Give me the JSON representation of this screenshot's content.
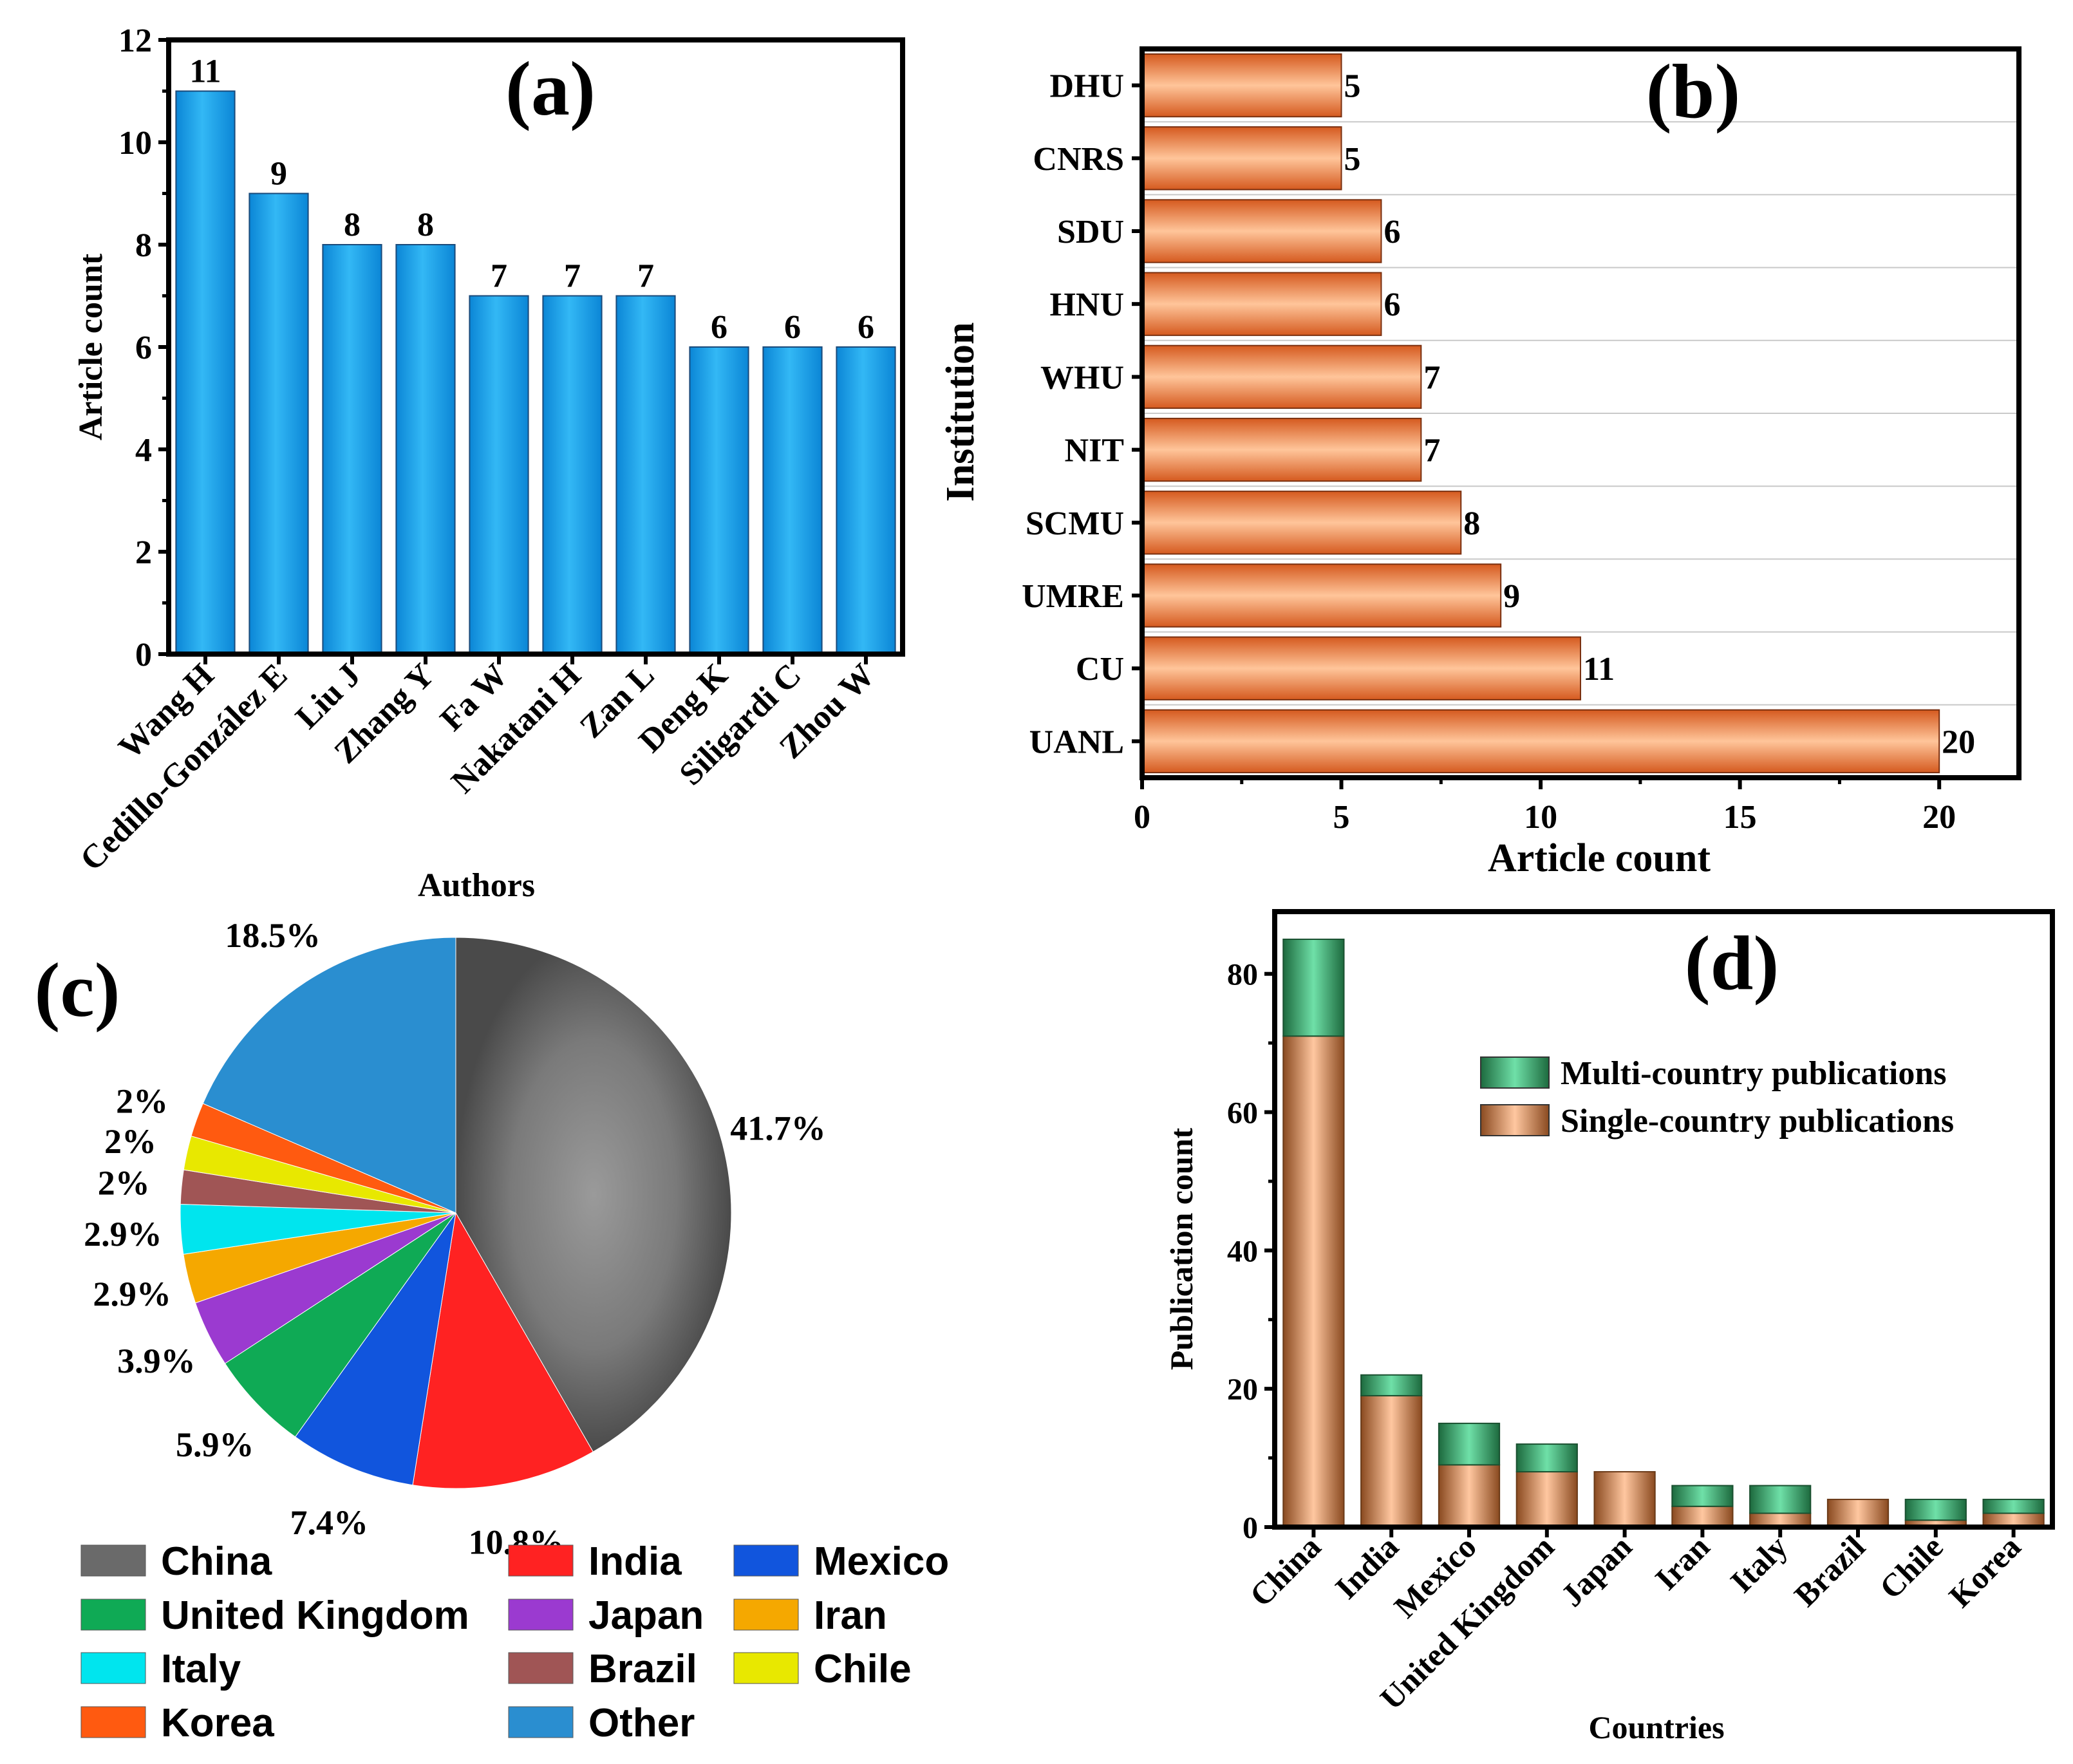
{
  "chart_data": [
    {
      "type": "bar",
      "panel_label": "(a)",
      "categories": [
        "Wang H",
        "Cedillo-González E",
        "Liu J",
        "Zhang Y",
        "Fa W",
        "Nakatani H",
        "Zan L",
        "Deng K",
        "Siligardi C",
        "Zhou W"
      ],
      "values": [
        11,
        9,
        8,
        8,
        7,
        7,
        7,
        6,
        6,
        6
      ],
      "value_labels": [
        "11",
        "9",
        "8",
        "8",
        "7",
        "7",
        "7",
        "6",
        "6",
        "6"
      ],
      "xlabel": "Authors",
      "ylabel": "Article count",
      "ylim": [
        0,
        12
      ],
      "yticks": [
        0,
        2,
        4,
        6,
        8,
        10,
        12
      ],
      "ytick_labels": [
        "0",
        "2",
        "4",
        "6",
        "8",
        "10",
        "12"
      ],
      "color": "#1fa8ee"
    },
    {
      "type": "bar",
      "orientation": "horizontal",
      "panel_label": "(b)",
      "categories": [
        "DHU",
        "CNRS",
        "SDU",
        "HNU",
        "WHU",
        "NIT",
        "SCMU",
        "UMRE",
        "CU",
        "UANL"
      ],
      "values": [
        5,
        5,
        6,
        6,
        7,
        7,
        8,
        9,
        11,
        20
      ],
      "value_labels": [
        "5",
        "5",
        "6",
        "6",
        "7",
        "7",
        "8",
        "9",
        "11",
        "20"
      ],
      "xlabel": "Article count",
      "ylabel": "Institution",
      "xlim": [
        0,
        22
      ],
      "xticks": [
        0,
        5,
        10,
        15,
        20
      ],
      "xtick_labels": [
        "0",
        "5",
        "10",
        "15",
        "20"
      ],
      "color": "#ef8a4e"
    },
    {
      "type": "pie",
      "panel_label": "(c)",
      "categories": [
        "China",
        "India",
        "Mexico",
        "United Kingdom",
        "Japan",
        "Iran",
        "Italy",
        "Brazil",
        "Chile",
        "Korea",
        "Other"
      ],
      "values": [
        41.7,
        10.8,
        7.4,
        5.9,
        3.9,
        2.9,
        2.9,
        2,
        2,
        2,
        18.5
      ],
      "percent_labels": [
        "41.7%",
        "10.8%",
        "7.4%",
        "5.9%",
        "3.9%",
        "2.9%",
        "2.9%",
        "2%",
        "2%",
        "2%",
        "18.5%"
      ],
      "colors": [
        "#6a6a6a",
        "#ff2222",
        "#1155dd",
        "#0faa55",
        "#9b3ad0",
        "#f5a800",
        "#00e5ee",
        "#a05555",
        "#e8e800",
        "#ff5a10",
        "#2a8ed0"
      ],
      "legend": [
        {
          "label": "China",
          "color": "#6a6a6a"
        },
        {
          "label": "India",
          "color": "#ff2222"
        },
        {
          "label": "Mexico",
          "color": "#1155dd"
        },
        {
          "label": "United Kingdom",
          "color": "#0faa55"
        },
        {
          "label": "Japan",
          "color": "#9b3ad0"
        },
        {
          "label": "Iran",
          "color": "#f5a800"
        },
        {
          "label": "Italy",
          "color": "#00e5ee"
        },
        {
          "label": "Brazil",
          "color": "#a05555"
        },
        {
          "label": "Chile",
          "color": "#e8e800"
        },
        {
          "label": "Korea",
          "color": "#ff5a10"
        },
        {
          "label": "Other",
          "color": "#2a8ed0"
        }
      ],
      "legend_position": "bottom"
    },
    {
      "type": "bar",
      "stacked": true,
      "panel_label": "(d)",
      "categories": [
        "China",
        "India",
        "Mexico",
        "United Kingdom",
        "Japan",
        "Iran",
        "Italy",
        "Brazil",
        "Chile",
        "Korea"
      ],
      "series": [
        {
          "name": "Single-country publications",
          "values": [
            71,
            19,
            9,
            8,
            8,
            3,
            2,
            4,
            1,
            2
          ],
          "color": "#f2b080"
        },
        {
          "name": "Multi-country publications",
          "values": [
            14,
            3,
            6,
            4,
            0,
            3,
            4,
            0,
            3,
            2
          ],
          "color": "#3fbf7f"
        }
      ],
      "legend_order": [
        "Multi-country publications",
        "Single-country publications"
      ],
      "legend_position": "top-right",
      "xlabel": "Countries",
      "ylabel": "Publication count",
      "ylim": [
        0,
        89
      ],
      "yticks": [
        0,
        20,
        40,
        60,
        80
      ],
      "ytick_labels": [
        "0",
        "20",
        "40",
        "60",
        "80"
      ]
    }
  ]
}
